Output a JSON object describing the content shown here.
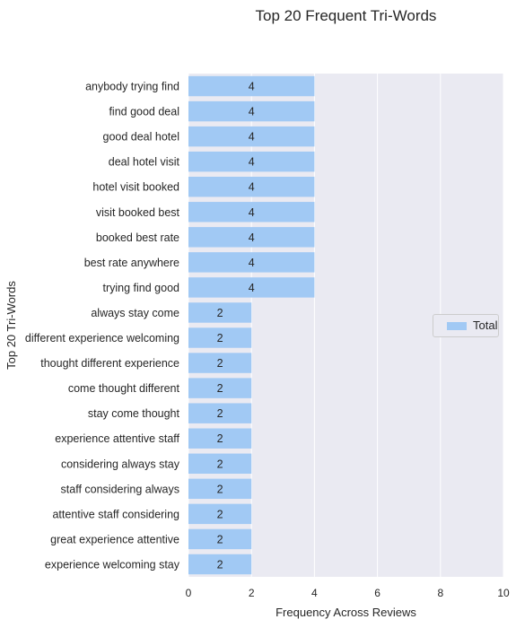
{
  "chart_data": {
    "type": "bar",
    "orientation": "horizontal",
    "title": "Top 20 Frequent Tri-Words",
    "xlabel": "Frequency Across Reviews",
    "ylabel": "Top 20 Tri-Words",
    "xlim": [
      0,
      10
    ],
    "xticks": [
      0,
      2,
      4,
      6,
      8,
      10
    ],
    "grid": true,
    "legend_position": "center-right",
    "categories": [
      "anybody trying find",
      "find good deal",
      "good deal hotel",
      "deal hotel visit",
      "hotel visit booked",
      "visit booked best",
      "booked best rate",
      "best rate anywhere",
      "trying find good",
      "always stay come",
      "different experience welcoming",
      "thought different experience",
      "come thought different",
      "stay come thought",
      "experience attentive staff",
      "considering always stay",
      "staff considering always",
      "attentive staff considering",
      "great experience attentive",
      "experience welcoming stay"
    ],
    "series": [
      {
        "name": "Total",
        "color": "#a1c9f4",
        "values": [
          4,
          4,
          4,
          4,
          4,
          4,
          4,
          4,
          4,
          2,
          2,
          2,
          2,
          2,
          2,
          2,
          2,
          2,
          2,
          2
        ]
      }
    ],
    "colors": {
      "plot_background": "#eaeaf2",
      "grid": "#ffffff",
      "bar": "#a1c9f4"
    }
  }
}
